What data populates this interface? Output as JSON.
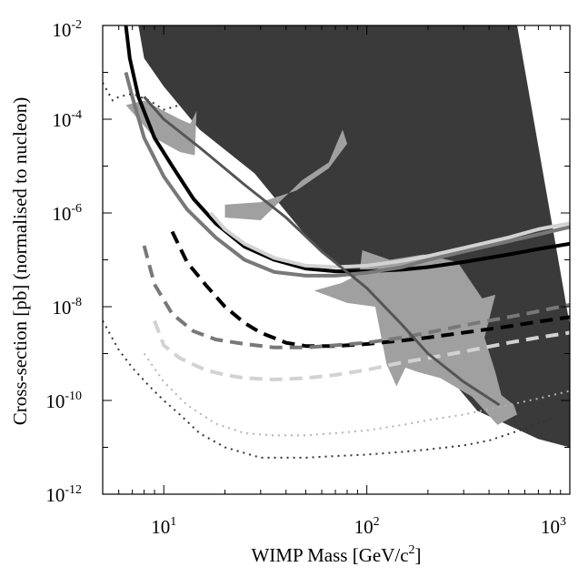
{
  "chart_data": {
    "type": "line",
    "title": "",
    "xlabel": "WIMP Mass [GeV/c²]",
    "ylabel": "Cross-section [pb] (normalised to nucleon)",
    "x_scale": "log",
    "y_scale": "log",
    "xlim": [
      5,
      1000
    ],
    "ylim": [
      1e-12,
      0.01
    ],
    "x_ticks": [
      {
        "value": 10,
        "base": "10",
        "exp": "1"
      },
      {
        "value": 100,
        "base": "10",
        "exp": "2"
      },
      {
        "value": 1000,
        "base": "10",
        "exp": "3"
      }
    ],
    "y_ticks": [
      {
        "value": 0.01,
        "base": "10",
        "exp": "-2"
      },
      {
        "value": 0.0001,
        "base": "10",
        "exp": "-4"
      },
      {
        "value": 1e-06,
        "base": "10",
        "exp": "-6"
      },
      {
        "value": 1e-08,
        "base": "10",
        "exp": "-8"
      },
      {
        "value": 1e-10,
        "base": "10",
        "exp": "-10"
      },
      {
        "value": 1e-12,
        "base": "10",
        "exp": "-12"
      }
    ],
    "grid": false,
    "legend": "none",
    "regions": [
      {
        "fill": "#3a3a3a",
        "points": [
          [
            7.5,
            0.01
          ],
          [
            550,
            0.01
          ],
          [
            1000,
            4e-09
          ],
          [
            1000,
            1e-11
          ],
          [
            700,
            1.5e-11
          ],
          [
            350,
            6e-11
          ],
          [
            130,
            1e-08
          ],
          [
            55,
            2e-07
          ],
          [
            28,
            7e-06
          ],
          [
            15,
            6e-05
          ],
          [
            10,
            0.0005
          ],
          [
            8,
            0.002
          ]
        ]
      },
      {
        "fill": "#a0a0a0",
        "points": [
          [
            6.5,
            0.0002
          ],
          [
            8,
            0.00025
          ],
          [
            10,
            0.00015
          ],
          [
            12,
            0.0001
          ],
          [
            13.5,
            8e-05
          ],
          [
            14.5,
            0.00015
          ],
          [
            14.2,
            1.7e-05
          ],
          [
            12,
            2e-05
          ],
          [
            9,
            4e-05
          ],
          [
            7.5,
            0.0001
          ]
        ]
      },
      {
        "fill": "#a0a0a0",
        "points": [
          [
            20,
            1.5e-06
          ],
          [
            30,
            1.7e-06
          ],
          [
            45,
            3e-06
          ],
          [
            65,
            9e-06
          ],
          [
            80,
            3e-05
          ],
          [
            76,
            6e-05
          ],
          [
            65,
            1.2e-05
          ],
          [
            48,
            5e-06
          ],
          [
            30,
            7e-07
          ],
          [
            20,
            8e-07
          ]
        ]
      },
      {
        "fill": "#a0a0a0",
        "points": [
          [
            95,
            1.6e-07
          ],
          [
            130,
            1e-07
          ],
          [
            190,
            1.3e-07
          ],
          [
            280,
            9e-08
          ],
          [
            370,
            1.5e-08
          ],
          [
            430,
            1.8e-08
          ],
          [
            380,
            2.2e-09
          ],
          [
            430,
            4e-10
          ],
          [
            460,
            1.3e-10
          ],
          [
            530,
            8e-11
          ],
          [
            550,
            5e-11
          ],
          [
            440,
            3e-11
          ],
          [
            330,
            1.2e-10
          ],
          [
            230,
            3e-10
          ],
          [
            180,
            4e-10
          ],
          [
            155,
            5e-10
          ],
          [
            140,
            2e-10
          ],
          [
            125,
            6e-10
          ],
          [
            110,
            1e-08
          ],
          [
            80,
            1.2e-08
          ],
          [
            55,
            2.2e-08
          ],
          [
            75,
            3.2e-08
          ],
          [
            92,
            5e-08
          ]
        ]
      }
    ],
    "series": [
      {
        "color": "#000000",
        "dash": "solid",
        "width": 4,
        "x": [
          6.5,
          6.8,
          7.5,
          9,
          11,
          14,
          18,
          25,
          35,
          50,
          70,
          100,
          150,
          200,
          300,
          500,
          700,
          1000
        ],
        "y": [
          0.01,
          0.002,
          0.0003,
          4e-05,
          1e-05,
          2e-06,
          6e-07,
          1.9e-07,
          1e-07,
          6.5e-08,
          5.7e-08,
          5.7e-08,
          6.2e-08,
          7e-08,
          9e-08,
          1.3e-07,
          1.7e-07,
          2.2e-07
        ]
      },
      {
        "color": "#787878",
        "dash": "solid",
        "width": 4,
        "x": [
          6.5,
          7,
          8,
          10,
          13,
          18,
          25,
          35,
          50,
          70,
          100,
          150,
          200,
          300,
          500,
          700,
          1000
        ],
        "y": [
          0.001,
          0.0003,
          4e-05,
          6e-06,
          1.2e-06,
          3e-07,
          1e-07,
          5.5e-08,
          4.6e-08,
          4.6e-08,
          5.3e-08,
          7e-08,
          1e-07,
          1.5e-07,
          2.5e-07,
          3.5e-07,
          5e-07
        ]
      },
      {
        "color": "#d2d2d2",
        "dash": "solid",
        "width": 4,
        "x": [
          17,
          20,
          25,
          35,
          50,
          70,
          100,
          150,
          200,
          300,
          500,
          700,
          1000
        ],
        "y": [
          1e-06,
          4.5e-07,
          2.2e-07,
          1.1e-07,
          7.5e-08,
          7e-08,
          7.5e-08,
          9.5e-08,
          1.2e-07,
          1.8e-07,
          3e-07,
          4.5e-07,
          6e-07
        ]
      },
      {
        "color": "#000000",
        "dash": "dashed",
        "width": 4,
        "x": [
          11,
          13,
          16,
          20,
          25,
          30,
          40,
          50,
          70,
          100,
          150,
          200,
          300,
          500,
          700,
          1000
        ],
        "y": [
          4e-07,
          9e-08,
          3e-08,
          1e-08,
          4.5e-09,
          2.8e-09,
          1.7e-09,
          1.45e-09,
          1.45e-09,
          1.6e-09,
          1.9e-09,
          2.2e-09,
          2.8e-09,
          3.8e-09,
          4.8e-09,
          6e-09
        ]
      },
      {
        "color": "#787878",
        "dash": "dashed",
        "width": 4,
        "x": [
          8,
          9,
          11,
          14,
          18,
          25,
          35,
          50,
          70,
          100,
          150,
          200,
          300,
          500,
          700,
          1000
        ],
        "y": [
          2e-07,
          3e-08,
          7e-09,
          3e-09,
          2e-09,
          1.6e-09,
          1.35e-09,
          1.35e-09,
          1.5e-09,
          1.7e-09,
          2.2e-09,
          2.8e-09,
          4e-09,
          6e-09,
          8e-09,
          1.1e-08
        ]
      },
      {
        "color": "#d2d2d2",
        "dash": "dashed",
        "width": 4,
        "x": [
          9,
          10,
          12,
          16,
          20,
          25,
          35,
          50,
          70,
          100,
          150,
          200,
          300,
          500,
          700,
          1000
        ],
        "y": [
          5e-09,
          1.5e-09,
          8e-10,
          4.5e-10,
          3.5e-10,
          3e-10,
          2.8e-10,
          3e-10,
          3.5e-10,
          4.5e-10,
          6.5e-10,
          8e-10,
          1.1e-09,
          1.7e-09,
          2.2e-09,
          2.8e-09
        ]
      },
      {
        "color": "#333333",
        "dash": "dotted",
        "width": 2,
        "x": [
          5,
          5.6,
          6,
          7,
          8.5,
          10,
          12
        ],
        "y": [
          0.0006,
          0.00025,
          0.0003,
          0.00035,
          0.00025,
          0.00016,
          0.0002
        ]
      },
      {
        "color": "#333333",
        "dash": "dotted",
        "width": 2,
        "x": [
          5,
          6,
          7,
          8.5,
          10,
          12,
          15,
          20,
          30,
          50,
          70,
          100,
          150,
          200,
          300,
          400,
          600,
          800
        ],
        "y": [
          5e-09,
          1.2e-09,
          5e-10,
          2e-10,
          1e-10,
          5e-11,
          2e-11,
          1e-11,
          6e-12,
          6e-12,
          6.5e-12,
          7e-12,
          8e-12,
          9e-12,
          1.1e-11,
          1.4e-11,
          2.5e-11,
          4e-11
        ]
      },
      {
        "color": "#b4b4b4",
        "dash": "dotted",
        "width": 2,
        "x": [
          8,
          10,
          13,
          18,
          25,
          35,
          50,
          70,
          100,
          150,
          200,
          300,
          500,
          700,
          1000
        ],
        "y": [
          1e-09,
          2.5e-10,
          8e-11,
          3.2e-11,
          2e-11,
          1.8e-11,
          1.8e-11,
          2e-11,
          2.3e-11,
          3e-11,
          3.8e-11,
          5e-11,
          8e-11,
          1.1e-10,
          1.6e-10
        ]
      },
      {
        "color": "#555555",
        "dash": "solid",
        "width": 3,
        "x": [
          8,
          10,
          15,
          25,
          40,
          60,
          100,
          150,
          200,
          300,
          450
        ],
        "y": [
          0.0003,
          0.0001,
          2.5e-05,
          4e-06,
          8e-07,
          1.5e-07,
          2.5e-08,
          4e-09,
          1e-09,
          2.5e-10,
          8e-11
        ]
      }
    ]
  }
}
